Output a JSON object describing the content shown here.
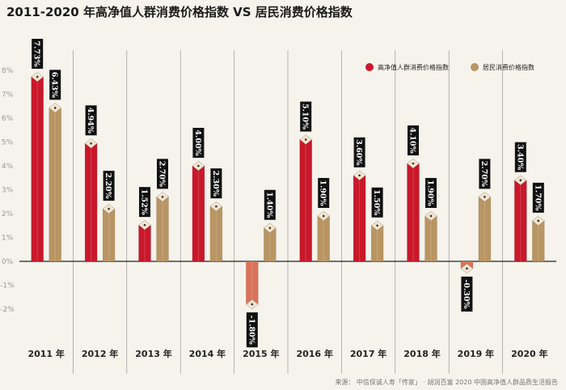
{
  "title": "2011-2020 年高净值人群消费价格指数 VS 居民消费价格指数",
  "source": "来源： 中信保诚人寿「传家」 · 胡润百富 2020 中国高净值人群品质生活报告",
  "colors": {
    "hnw": "#c8182a",
    "hnw_negative": "#d9735a",
    "resident": "#b99563",
    "background": "#f6f3ec",
    "label_bg": "#111111"
  },
  "chart_data": {
    "type": "bar",
    "categories": [
      "2011 年",
      "2012 年",
      "2013 年",
      "2014 年",
      "2015 年",
      "2016 年",
      "2017 年",
      "2018 年",
      "2019 年",
      "2020 年"
    ],
    "series": [
      {
        "name": "高净值人群消费价格指数",
        "values": [
          7.73,
          4.94,
          1.52,
          4.0,
          -1.8,
          5.1,
          3.6,
          4.1,
          -0.3,
          3.4
        ],
        "labels": [
          "7.73%",
          "4.94%",
          "1.52%",
          "4.00%",
          "-1.80%",
          "5.10%",
          "3.60%",
          "4.10%",
          "-0.30%",
          "3.40%"
        ]
      },
      {
        "name": "居民消费价格指数",
        "values": [
          6.43,
          2.2,
          2.7,
          2.3,
          1.4,
          1.9,
          1.5,
          1.9,
          2.7,
          1.7
        ],
        "labels": [
          "6.43%",
          "2.20%",
          "2.70%",
          "2.30%",
          "1.40%",
          "1.90%",
          "1.50%",
          "1.90%",
          "2.70%",
          "1.70%"
        ]
      }
    ],
    "ylim": [
      -2,
      8
    ],
    "yticks": [
      8,
      7,
      6,
      5,
      4,
      3,
      2,
      1,
      0,
      -1,
      -2
    ],
    "ytick_labels": [
      "8%",
      "7%",
      "6%",
      "5%",
      "4%",
      "3%",
      "2%",
      "1%",
      "0%",
      "-1%",
      "-2%"
    ],
    "legend_position": "top-right"
  }
}
